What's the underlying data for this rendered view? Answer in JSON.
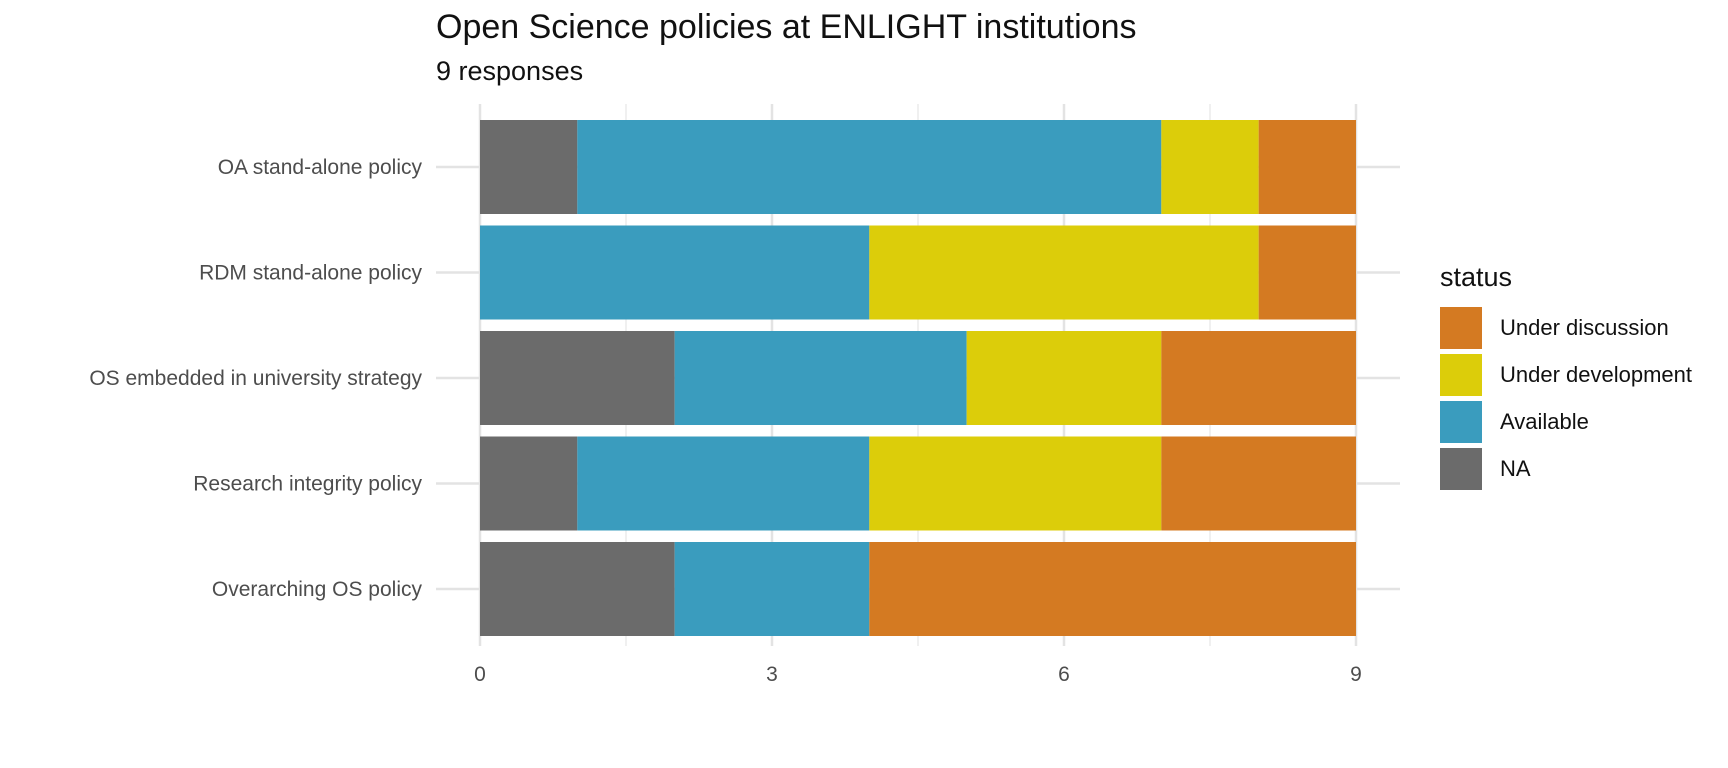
{
  "chart_data": {
    "type": "bar",
    "orientation": "horizontal",
    "stacked": true,
    "title": "Open Science policies at ENLIGHT institutions",
    "subtitle": "9 responses",
    "categories": [
      "OA stand-alone policy",
      "RDM stand-alone policy",
      "OS embedded in university strategy",
      "Research integrity policy",
      "Overarching OS policy"
    ],
    "series": [
      {
        "name": "NA",
        "color": "#6b6b6b",
        "values": [
          1,
          0,
          2,
          1,
          2
        ]
      },
      {
        "name": "Available",
        "color": "#3a9cbe",
        "values": [
          6,
          4,
          3,
          3,
          2
        ]
      },
      {
        "name": "Under development",
        "color": "#dccd0a",
        "values": [
          1,
          4,
          2,
          3,
          0
        ]
      },
      {
        "name": "Under discussion",
        "color": "#d47a22",
        "values": [
          1,
          1,
          2,
          2,
          5
        ]
      }
    ],
    "xlim": [
      0,
      9
    ],
    "xticks": [
      "0",
      "3",
      "6",
      "9"
    ],
    "grid": true,
    "legend": {
      "title": "status",
      "position": "right",
      "order": [
        "Under discussion",
        "Under development",
        "Available",
        "NA"
      ]
    }
  }
}
